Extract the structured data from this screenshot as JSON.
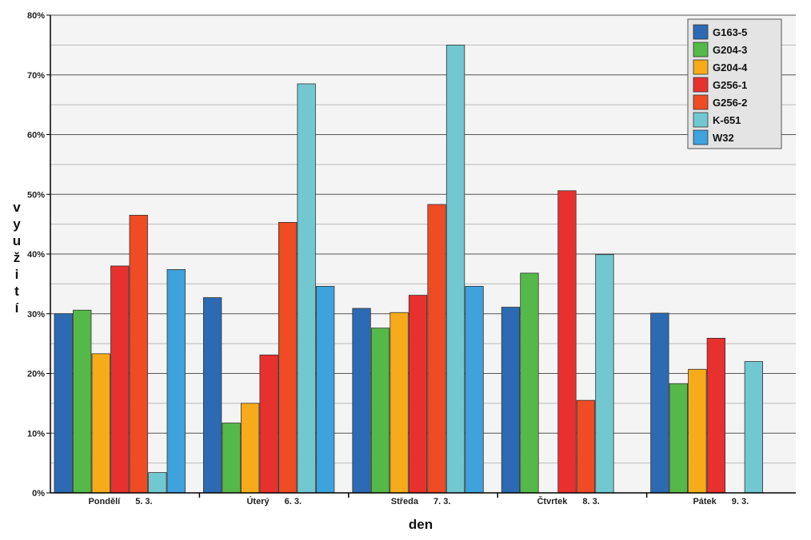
{
  "chart_data": {
    "type": "bar",
    "title": "",
    "xlabel": "den",
    "ylabel": "využití",
    "ylim": [
      0,
      80
    ],
    "ytick_step": 10,
    "y_unit": "%",
    "grid": true,
    "legend_position": "top-right",
    "categories": [
      {
        "day": "Pondělí",
        "date": "5. 3."
      },
      {
        "day": "Úterý",
        "date": "6. 3."
      },
      {
        "day": "Středa",
        "date": "7. 3."
      },
      {
        "day": "Čtvrtek",
        "date": "8. 3."
      },
      {
        "day": "Pátek",
        "date": "9. 3."
      }
    ],
    "series": [
      {
        "name": "G163-5",
        "color": "#2c6bb3",
        "values": [
          30.0,
          32.7,
          30.9,
          31.1,
          30.1
        ]
      },
      {
        "name": "G204-3",
        "color": "#54b948",
        "values": [
          30.6,
          11.7,
          27.6,
          36.8,
          18.3
        ]
      },
      {
        "name": "G204-4",
        "color": "#f7ab1b",
        "values": [
          23.3,
          15.0,
          30.2,
          null,
          20.7
        ]
      },
      {
        "name": "G256-1",
        "color": "#e8312e",
        "values": [
          38.0,
          23.1,
          33.1,
          50.6,
          25.9
        ]
      },
      {
        "name": "G256-2",
        "color": "#ef4b24",
        "values": [
          46.5,
          45.3,
          48.3,
          15.5,
          null
        ]
      },
      {
        "name": "K-651",
        "color": "#72c8d1",
        "values": [
          3.4,
          68.5,
          75.0,
          39.9,
          22.0
        ]
      },
      {
        "name": "W32",
        "color": "#3ea2dc",
        "values": [
          37.4,
          34.6,
          34.6,
          null,
          null
        ]
      }
    ]
  }
}
